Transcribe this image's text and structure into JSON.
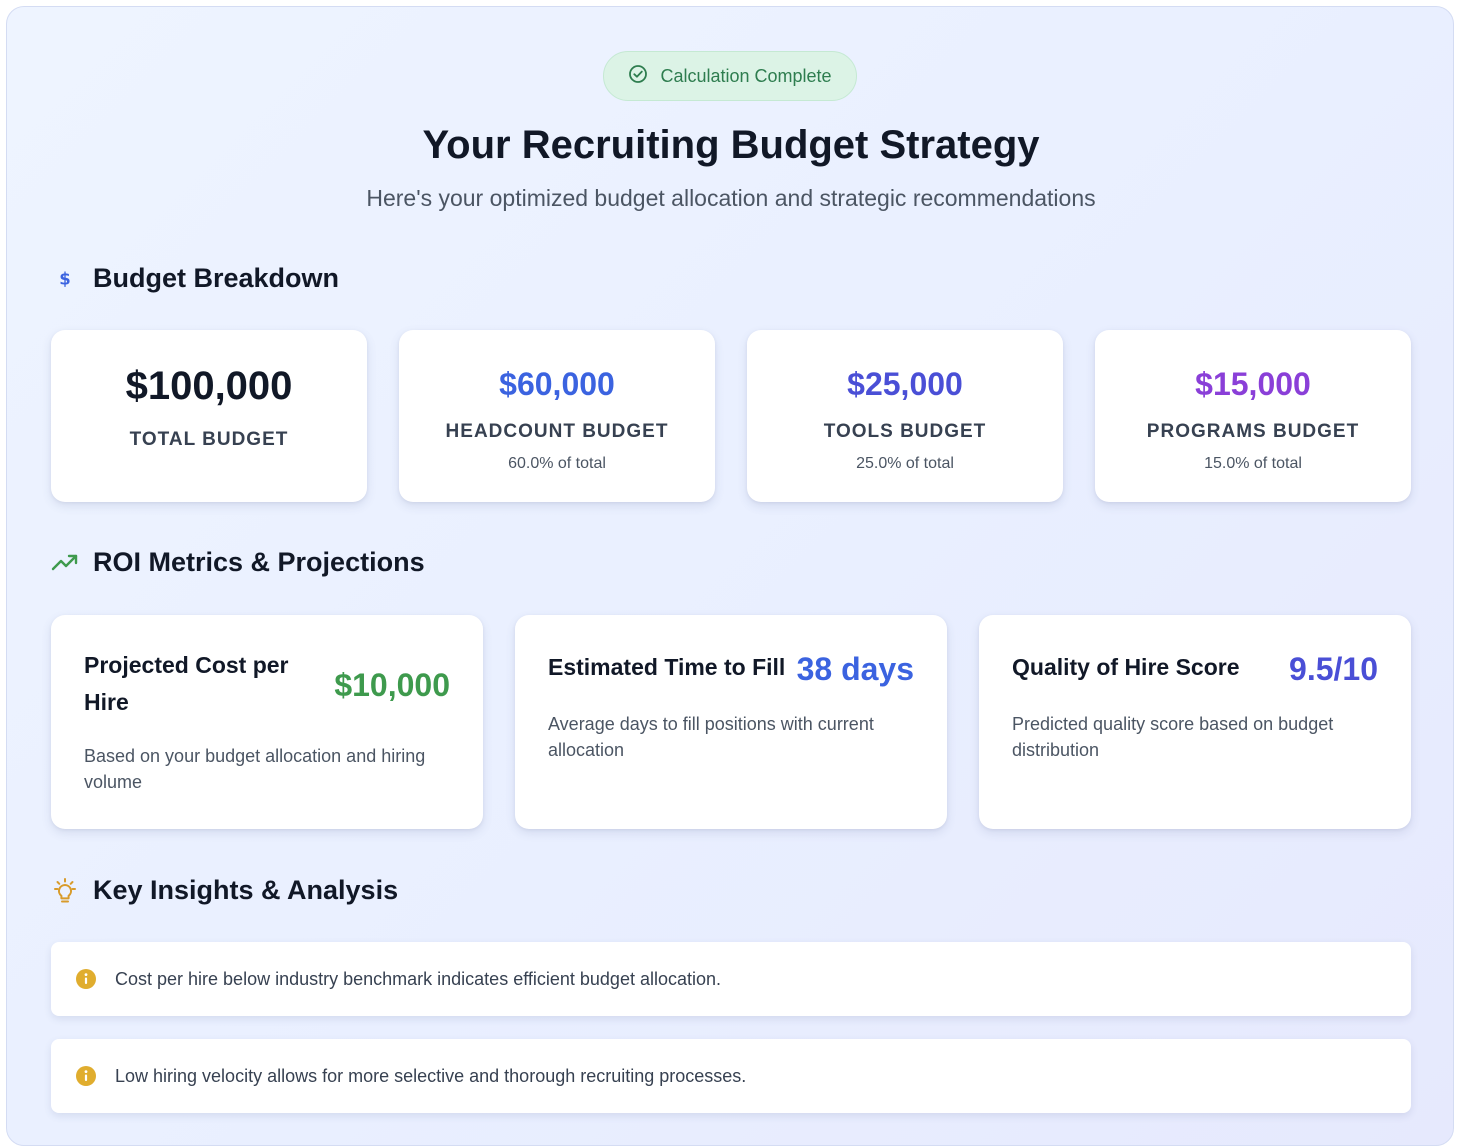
{
  "header": {
    "badge_label": "Calculation Complete",
    "title": "Your Recruiting Budget Strategy",
    "subtitle": "Here's your optimized budget allocation and strategic recommendations"
  },
  "budget_section": {
    "title": "Budget Breakdown",
    "cards": [
      {
        "amount": "$100,000",
        "label": "TOTAL BUDGET",
        "pct": "",
        "color": "#111827"
      },
      {
        "amount": "$60,000",
        "label": "HEADCOUNT BUDGET",
        "pct": "60.0% of total",
        "color": "#3b63e0"
      },
      {
        "amount": "$25,000",
        "label": "TOOLS BUDGET",
        "pct": "25.0% of total",
        "color": "#4a4fd6"
      },
      {
        "amount": "$15,000",
        "label": "PROGRAMS BUDGET",
        "pct": "15.0% of total",
        "color": "#8a3fd8"
      }
    ]
  },
  "roi_section": {
    "title": "ROI Metrics & Projections",
    "cards": [
      {
        "title": "Projected Cost per Hire",
        "value": "$10,000",
        "desc": "Based on your budget allocation and hiring volume",
        "color": "#3e9a4d"
      },
      {
        "title": "Estimated Time to Fill",
        "value": "38 days",
        "desc": "Average days to fill positions with current allocation",
        "color": "#3b63e0"
      },
      {
        "title": "Quality of Hire Score",
        "value": "9.5/10",
        "desc": "Predicted quality score based on budget distribution",
        "color": "#4a4fd6"
      }
    ]
  },
  "insights_section": {
    "title": "Key Insights & Analysis",
    "items": [
      "Cost per hire below industry benchmark indicates efficient budget allocation.",
      "Low hiring velocity allows for more selective and thorough recruiting processes."
    ]
  },
  "icons": {
    "badge": "check-circle-icon",
    "budget": "dollar-icon",
    "roi": "trending-up-icon",
    "insights": "lightbulb-icon",
    "insight_item": "info-icon"
  },
  "colors": {
    "success": "#2e7d4f",
    "dollar_icon": "#3b63e0",
    "trend_icon": "#3e9a4d",
    "bulb_icon": "#d89b2b",
    "info_icon": "#e0ad2e"
  }
}
